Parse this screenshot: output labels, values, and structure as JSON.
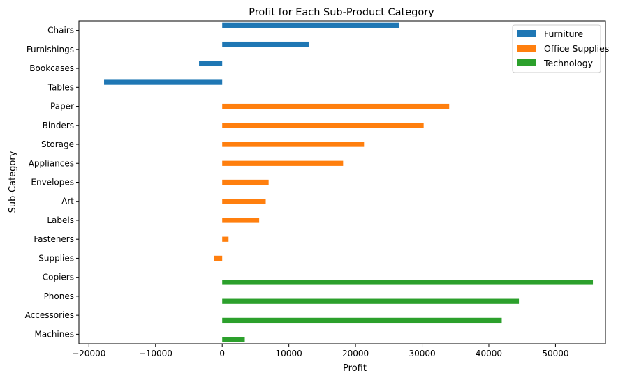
{
  "chart_data": {
    "type": "bar",
    "orientation": "horizontal",
    "title": "Profit for Each Sub-Product Category",
    "xlabel": "Profit",
    "ylabel": "Sub-Category",
    "xlim": [
      -21500,
      57500
    ],
    "xticks": [
      -20000,
      -10000,
      0,
      10000,
      20000,
      30000,
      40000,
      50000
    ],
    "xtick_labels": [
      "−20000",
      "−10000",
      "0",
      "10000",
      "20000",
      "30000",
      "40000",
      "50000"
    ],
    "grid": false,
    "legend_position": "top-right",
    "categories": [
      "Chairs",
      "Furnishings",
      "Bookcases",
      "Tables",
      "Paper",
      "Binders",
      "Storage",
      "Appliances",
      "Envelopes",
      "Art",
      "Labels",
      "Fasteners",
      "Supplies",
      "Copiers",
      "Phones",
      "Accessories",
      "Machines"
    ],
    "series": [
      {
        "name": "Furniture",
        "color": "#1f77b4",
        "values": [
          26590,
          13059,
          -3473,
          -17725,
          null,
          null,
          null,
          null,
          null,
          null,
          null,
          null,
          null,
          null,
          null,
          null,
          null
        ]
      },
      {
        "name": "Office Supplies",
        "color": "#ff7f0e",
        "values": [
          null,
          null,
          null,
          null,
          34054,
          30222,
          21279,
          18138,
          6964,
          6528,
          5546,
          950,
          -1189,
          null,
          null,
          null,
          null
        ]
      },
      {
        "name": "Technology",
        "color": "#2ca02c",
        "values": [
          null,
          null,
          null,
          null,
          null,
          null,
          null,
          null,
          null,
          null,
          null,
          null,
          null,
          55618,
          44516,
          41937,
          3385
        ]
      }
    ]
  }
}
